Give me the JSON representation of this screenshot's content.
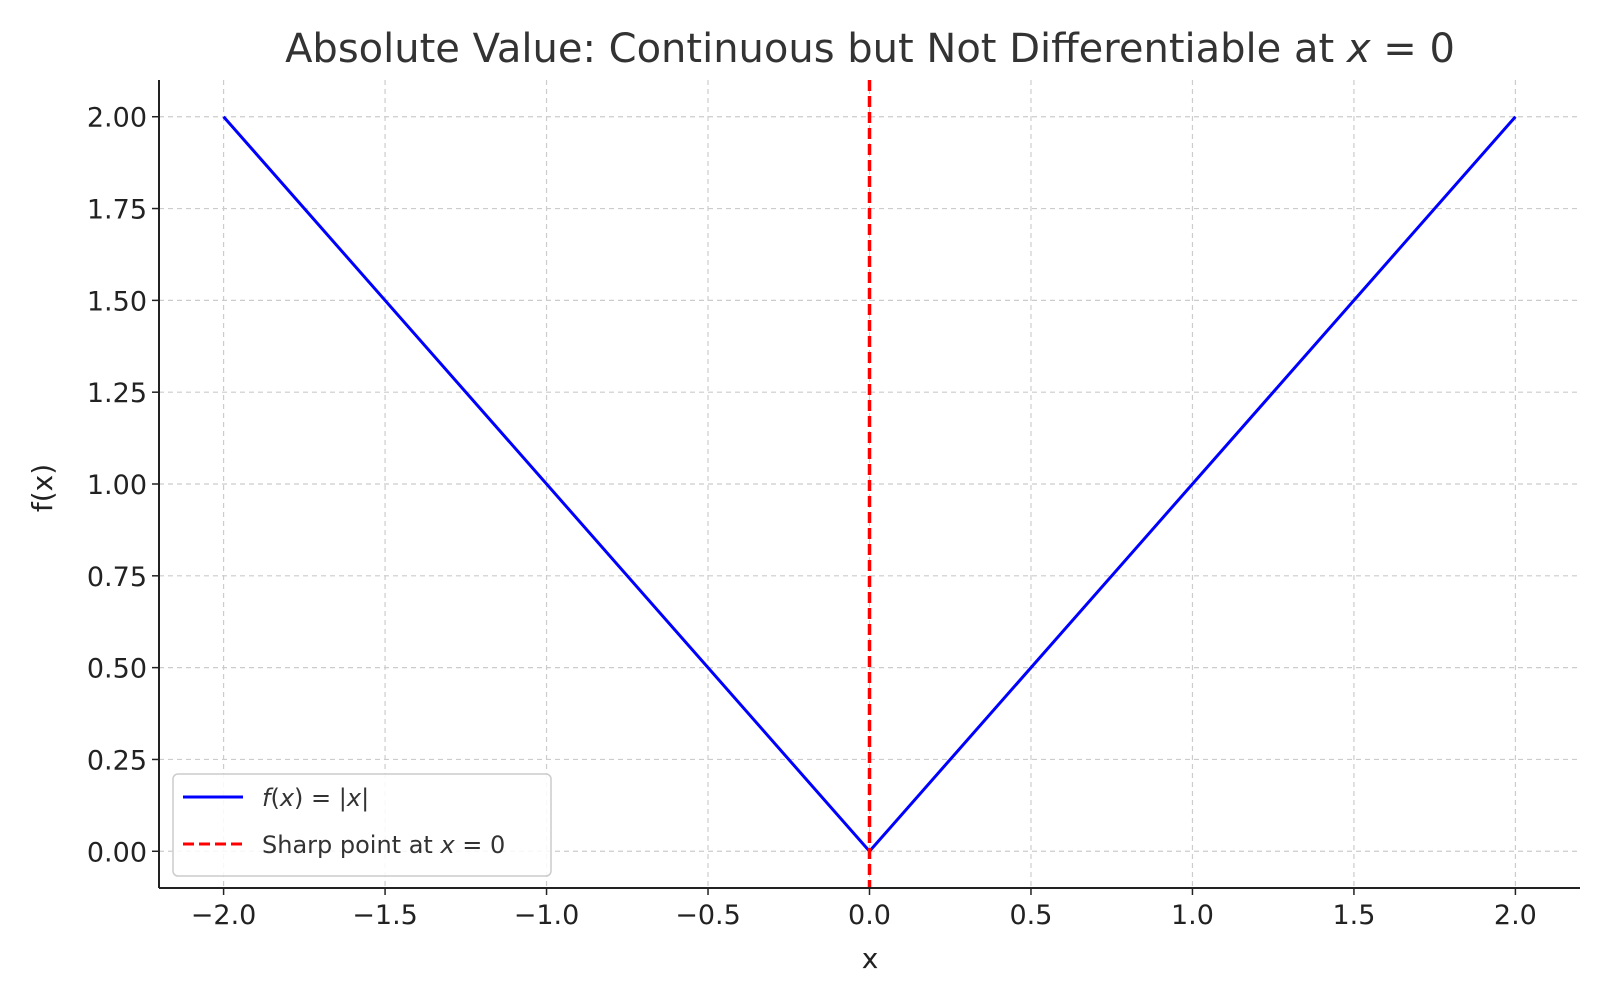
{
  "chart_data": {
    "type": "line",
    "title": {
      "prefix": "Absolute Value: Continuous but Not Differentiable at ",
      "var": "x",
      "rest": " = 0"
    },
    "xlabel": "x",
    "ylabel": "f(x)",
    "xlim": [
      -2.2,
      2.2
    ],
    "ylim": [
      -0.1,
      2.1
    ],
    "xticks": [
      -2.0,
      -1.5,
      -1.0,
      -0.5,
      0.0,
      0.5,
      1.0,
      1.5,
      2.0
    ],
    "xtick_labels": [
      "−2.0",
      "−1.5",
      "−1.0",
      "−0.5",
      "0.0",
      "0.5",
      "1.0",
      "1.5",
      "2.0"
    ],
    "yticks": [
      0.0,
      0.25,
      0.5,
      0.75,
      1.0,
      1.25,
      1.5,
      1.75,
      2.0
    ],
    "ytick_labels": [
      "0.00",
      "0.25",
      "0.50",
      "0.75",
      "1.00",
      "1.25",
      "1.50",
      "1.75",
      "2.00"
    ],
    "grid": true,
    "legend_position": "lower-left",
    "series": [
      {
        "legend": {
          "a": "f",
          "b": "(",
          "c": "x",
          "d": ") = |",
          "e": "x",
          "f": "|"
        },
        "color": "#0000ff",
        "style": "solid",
        "x": [
          -2.0,
          0.0,
          2.0
        ],
        "y": [
          2.0,
          0.0,
          2.0
        ]
      }
    ],
    "vlines": [
      {
        "x": 0.0,
        "legend": {
          "prefix": "Sharp point at ",
          "var": "x",
          "rest": " = 0"
        },
        "color": "#ff0000",
        "style": "dashed"
      }
    ]
  }
}
